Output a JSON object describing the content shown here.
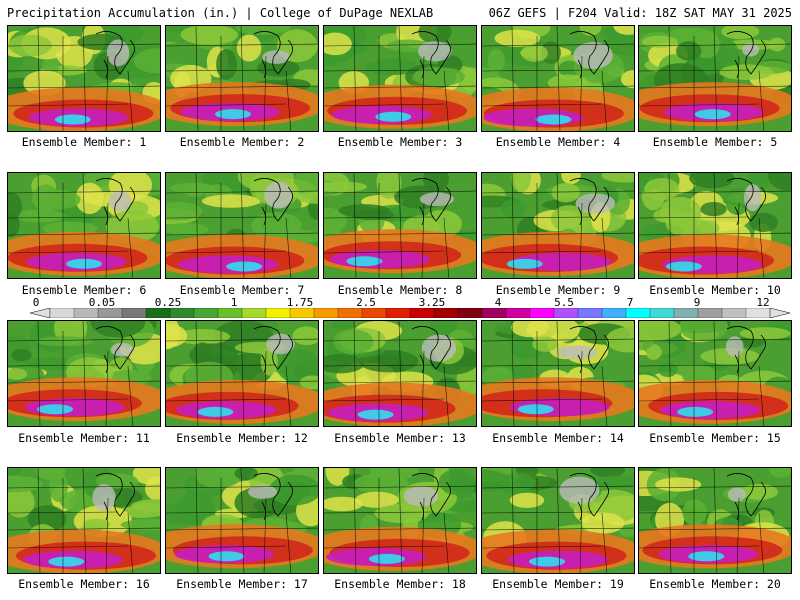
{
  "header": {
    "left_title": "Precipitation Accumulation (in.) | College of DuPage NEXLAB",
    "right_title": "06Z GEFS | F204 Valid: 18Z SAT MAY 31 2025"
  },
  "panels": [
    {
      "caption": "Ensemble Member: 1"
    },
    {
      "caption": "Ensemble Member: 2"
    },
    {
      "caption": "Ensemble Member: 3"
    },
    {
      "caption": "Ensemble Member: 4"
    },
    {
      "caption": "Ensemble Member: 5"
    },
    {
      "caption": "Ensemble Member: 6"
    },
    {
      "caption": "Ensemble Member: 7"
    },
    {
      "caption": "Ensemble Member: 8"
    },
    {
      "caption": "Ensemble Member: 9"
    },
    {
      "caption": "Ensemble Member: 10"
    },
    {
      "caption": "Ensemble Member: 11"
    },
    {
      "caption": "Ensemble Member: 12"
    },
    {
      "caption": "Ensemble Member: 13"
    },
    {
      "caption": "Ensemble Member: 14"
    },
    {
      "caption": "Ensemble Member: 15"
    },
    {
      "caption": "Ensemble Member: 16"
    },
    {
      "caption": "Ensemble Member: 17"
    },
    {
      "caption": "Ensemble Member: 18"
    },
    {
      "caption": "Ensemble Member: 19"
    },
    {
      "caption": "Ensemble Member: 20"
    }
  ],
  "scale": {
    "tick_labels": [
      "0",
      "0.05",
      "0.25",
      "1",
      "1.75",
      "2.5",
      "3.25",
      "4",
      "5.5",
      "7",
      "9",
      "12"
    ],
    "colors": [
      "#d8d8d8",
      "#b8b8b8",
      "#989898",
      "#787878",
      "#1a6e1a",
      "#2d8a2d",
      "#46a832",
      "#6abf2d",
      "#a8d830",
      "#f0f000",
      "#f8c800",
      "#f89a00",
      "#f07000",
      "#e84800",
      "#e01e00",
      "#c80000",
      "#a00000",
      "#800010",
      "#a00060",
      "#d000a0",
      "#ff00ff",
      "#b050ff",
      "#7878ff",
      "#40b0ff",
      "#00ffff",
      "#40d8d8",
      "#80b0b0",
      "#a0a0a0",
      "#c0c0c0",
      "#e0e0e0"
    ]
  }
}
